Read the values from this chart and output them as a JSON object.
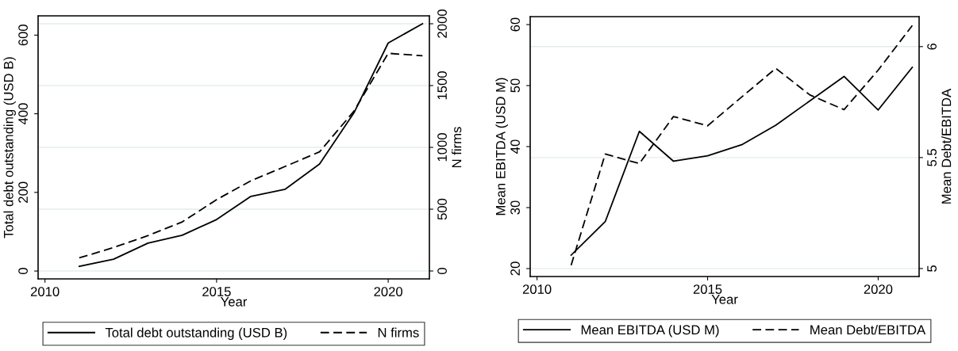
{
  "chart_data": [
    {
      "type": "line",
      "xlabel": "Year",
      "ylabel": "Total debt outstanding (USD B)",
      "y2label": "N firms",
      "x": [
        2011,
        2012,
        2013,
        2014,
        2015,
        2016,
        2017,
        2018,
        2019,
        2020,
        2021
      ],
      "xlim": [
        2009.8,
        2021.2
      ],
      "xticks": [
        2010,
        2015,
        2020
      ],
      "ylim": [
        -20,
        649
      ],
      "yticks": [
        0,
        200,
        400,
        600
      ],
      "y2lim": [
        -64,
        2064
      ],
      "y2ticks": [
        0,
        500,
        1000,
        1500,
        2000
      ],
      "grid": "y2",
      "legend": "bottom",
      "marker": "none",
      "series": [
        {
          "name": "Total debt outstanding (USD B)",
          "color": "#000000",
          "line_style": "solid",
          "values": [
            12,
            30,
            71,
            91,
            131,
            190,
            208,
            272,
            402,
            580,
            629
          ]
        },
        {
          "name": "N firms",
          "color": "#000000",
          "line_style": "dashed",
          "axis": "y2",
          "values": [
            106,
            190,
            286,
            397,
            577,
            730,
            846,
            964,
            1292,
            1761,
            1741
          ]
        }
      ]
    },
    {
      "type": "line",
      "xlabel": "Year",
      "ylabel": "Mean EBITDA (USD M)",
      "y2label": "Mean Debt/EBITDA",
      "x": [
        2011,
        2012,
        2013,
        2014,
        2015,
        2016,
        2017,
        2018,
        2019,
        2020,
        2021
      ],
      "xlim": [
        2009.8,
        2021.2
      ],
      "xticks": [
        2010,
        2015,
        2020
      ],
      "ylim": [
        18.7,
        61.3
      ],
      "yticks": [
        20,
        30,
        40,
        50,
        60
      ],
      "y2lim": [
        4.964,
        6.135
      ],
      "y2ticks": [
        5,
        5.5,
        6
      ],
      "grid": "y2",
      "legend": "bottom",
      "marker": "none",
      "series": [
        {
          "name": "Mean EBITDA (USD M)",
          "color": "#000000",
          "line_style": "solid",
          "values": [
            22.2,
            27.7,
            42.5,
            37.6,
            38.5,
            40.3,
            43.5,
            47.5,
            51.5,
            46,
            53
          ]
        },
        {
          "name": "Mean Debt/EBITDA",
          "color": "#000000",
          "line_style": "dashed",
          "axis": "y2",
          "values": [
            5.015,
            5.516,
            5.473,
            5.685,
            5.643,
            5.773,
            5.902,
            5.782,
            5.716,
            5.894,
            6.095
          ]
        }
      ]
    }
  ]
}
